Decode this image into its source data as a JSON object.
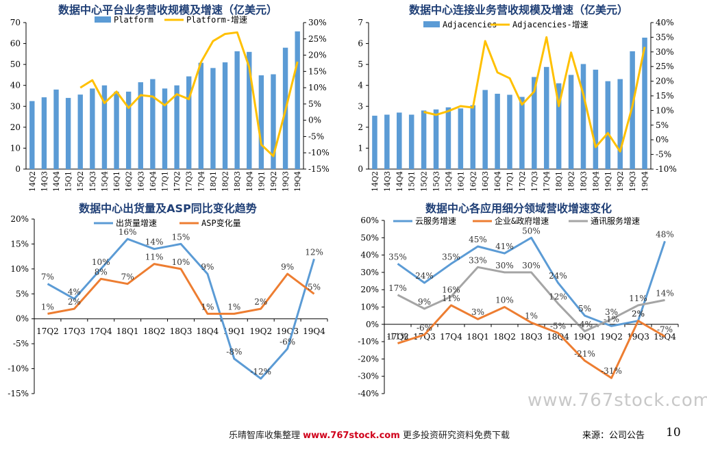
{
  "chart_data": [
    {
      "id": "c1",
      "type": "bar+line",
      "title": "数据中心平台业务营收规模及增速（亿美元）",
      "categories": [
        "14Q2",
        "14Q3",
        "14Q4",
        "15Q1",
        "15Q2",
        "15Q3",
        "15Q4",
        "16Q1",
        "16Q2",
        "16Q3",
        "16Q4",
        "17Q1",
        "17Q2",
        "17Q3",
        "17Q4",
        "18Q1",
        "18Q2",
        "18Q3",
        "18Q4",
        "19Q1",
        "19Q2",
        "19Q3",
        "19Q4"
      ],
      "series": [
        {
          "name": "Platform",
          "kind": "bar",
          "axis": "left",
          "color": "#5B9BD5",
          "values": [
            32.5,
            34.3,
            38,
            34,
            35.6,
            38.5,
            40,
            37,
            37,
            41.5,
            43,
            38.5,
            40,
            44.3,
            50.8,
            48.3,
            51,
            56.3,
            56,
            44.8,
            45.3,
            58,
            65.8
          ]
        },
        {
          "name": "Platform-增速",
          "kind": "line",
          "axis": "right",
          "color": "#FFC000",
          "values": [
            null,
            null,
            null,
            null,
            10,
            12.3,
            5.3,
            8.8,
            3.8,
            7.7,
            7.3,
            4.6,
            8,
            6.5,
            17.8,
            24.3,
            26.5,
            27,
            16.3,
            -7.5,
            -11,
            3,
            18
          ]
        }
      ],
      "ylim_left": [
        0,
        70
      ],
      "yticks_left": [
        "0",
        "10",
        "20",
        "30",
        "40",
        "50",
        "60",
        "70"
      ],
      "ylim_right": [
        -15,
        30
      ],
      "yticks_right": [
        "-15%",
        "-10%",
        "-5%",
        "0%",
        "5%",
        "10%",
        "15%",
        "20%",
        "25%",
        "30%"
      ]
    },
    {
      "id": "c2",
      "type": "bar+line",
      "title": "数据中心连接业务营收规模及增速（亿美元）",
      "categories": [
        "14Q2",
        "14Q3",
        "14Q4",
        "15Q1",
        "15Q2",
        "15Q3",
        "15Q4",
        "16Q1",
        "16Q2",
        "16Q3",
        "16Q4",
        "17Q1",
        "17Q2",
        "17Q3",
        "17Q4",
        "18Q1",
        "18Q2",
        "18Q3",
        "18Q4",
        "19Q1",
        "19Q2",
        "19Q3",
        "19Q4"
      ],
      "series": [
        {
          "name": "Adjacencies",
          "kind": "bar",
          "axis": "left",
          "color": "#5B9BD5",
          "values": [
            2.55,
            2.6,
            2.7,
            2.6,
            2.8,
            2.85,
            2.95,
            2.9,
            3.05,
            3.78,
            3.6,
            3.55,
            3.45,
            4.4,
            4.88,
            4.1,
            4.5,
            5.02,
            4.75,
            4.2,
            4.3,
            5.63,
            6.28
          ]
        },
        {
          "name": "Adjacencies-增速",
          "kind": "line",
          "axis": "right",
          "color": "#FFC000",
          "values": [
            null,
            null,
            null,
            null,
            9.5,
            8.5,
            9.8,
            11.5,
            11,
            33.7,
            23,
            21,
            12,
            16.5,
            35,
            11.5,
            29.8,
            15.5,
            -2.5,
            2.3,
            -4,
            11.5,
            31.7
          ]
        }
      ],
      "ylim_left": [
        0,
        7
      ],
      "yticks_left": [
        "0",
        "1",
        "2",
        "3",
        "4",
        "5",
        "6",
        "7"
      ],
      "ylim_right": [
        -10,
        40
      ],
      "yticks_right": [
        "-10%",
        "-5%",
        "0%",
        "5%",
        "10%",
        "15%",
        "20%",
        "25%",
        "30%",
        "35%",
        "40%"
      ]
    },
    {
      "id": "c3",
      "type": "line",
      "title": "数据中心出货量及ASP同比变化趋势",
      "categories": [
        "17Q2",
        "17Q3",
        "17Q4",
        "18Q1",
        "18Q2",
        "18Q3",
        "18Q4",
        "19Q1",
        "19Q2",
        "19Q3",
        "19Q4"
      ],
      "series": [
        {
          "name": "出货量增速",
          "color": "#5B9BD5",
          "values": [
            7,
            4,
            10,
            16,
            14,
            15,
            9,
            -8,
            -12,
            -6,
            12
          ],
          "labels": [
            "7%",
            "4%",
            "10%",
            "16%",
            "14%",
            "15%",
            "9%",
            "-8%",
            "-12%",
            "-6%",
            "12%"
          ]
        },
        {
          "name": "ASP变化量",
          "color": "#ED7D31",
          "values": [
            1,
            2,
            8,
            7,
            11,
            10,
            1,
            1,
            2,
            9,
            5
          ],
          "labels": [
            "1%",
            "2%",
            "8%",
            "7%",
            "11%",
            "10%",
            "1%",
            "1%",
            "2%",
            "9%",
            "5%"
          ]
        }
      ],
      "ylim": [
        -15,
        20
      ],
      "yticks": [
        "-15%",
        "-10%",
        "-5%",
        "0%",
        "5%",
        "10%",
        "15%",
        "20%"
      ]
    },
    {
      "id": "c4",
      "type": "line",
      "title": "数据中心各应用细分领域营收增速变化",
      "categories": [
        "17Q2",
        "17Q3",
        "17Q4",
        "18Q1",
        "18Q2",
        "18Q3",
        "18Q4",
        "19Q1",
        "19Q2",
        "19Q3",
        "19Q4"
      ],
      "series": [
        {
          "name": "云服务增速",
          "color": "#5B9BD5",
          "values": [
            35,
            24,
            35,
            45,
            41,
            50,
            24,
            5,
            -1,
            2,
            48
          ],
          "labels": [
            "35%",
            "24%",
            "35%",
            "45%",
            "41%",
            "50%",
            "24%",
            "5%",
            "-1%",
            "2%",
            "48%"
          ]
        },
        {
          "name": "企业&政府增速",
          "color": "#ED7D31",
          "values": [
            -11,
            -6,
            11,
            3,
            10,
            1,
            -5,
            -21,
            -31,
            2,
            -7
          ],
          "labels": [
            "-11%",
            "-6%",
            "11%",
            "3%",
            "10%",
            "1%",
            "-5%",
            "-21%",
            "-31%",
            "2%",
            "-7%"
          ]
        },
        {
          "name": "通讯服务增速",
          "color": "#A5A5A5",
          "values": [
            17,
            9,
            16,
            33,
            30,
            30,
            12,
            -4,
            3,
            11,
            14
          ],
          "labels": [
            "17%",
            "9%",
            "16%",
            "33%",
            "30%",
            "30%",
            "12%",
            "-4%",
            "3%",
            "11%",
            "14%"
          ]
        }
      ],
      "ylim": [
        -40,
        60
      ],
      "yticks": [
        "-40%",
        "-30%",
        "-20%",
        "-10%",
        "0%",
        "10%",
        "20%",
        "30%",
        "40%",
        "50%",
        "60%"
      ]
    }
  ],
  "footer": {
    "left_prefix": "乐晴智库收集整理",
    "left_url": "www.767stock.com",
    "left_suffix": "更多投资研究资料免费下载",
    "source": "来源：公司公告",
    "page_number": "10",
    "watermark": "www.767stock.com"
  }
}
